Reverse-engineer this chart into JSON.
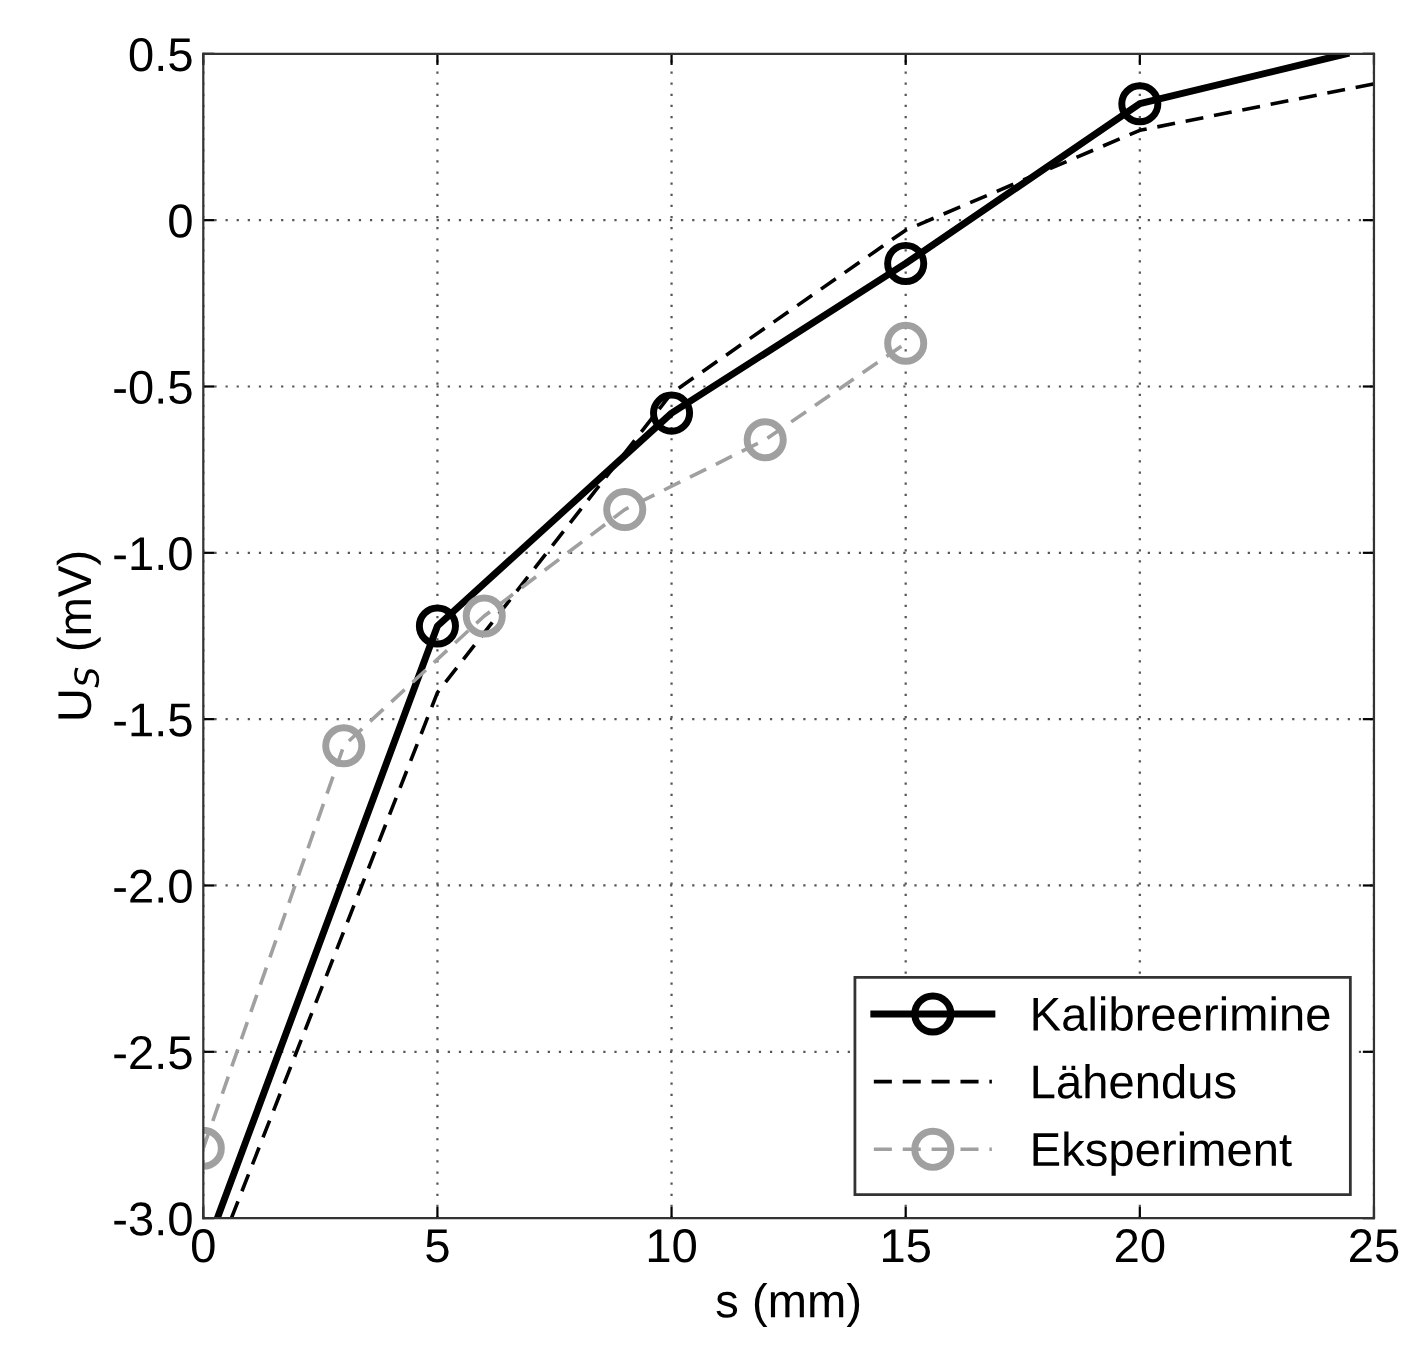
{
  "chart_data": {
    "type": "line",
    "xlabel": "s (mm)",
    "ylabel": "U$_{S}$ (mV)",
    "xlim": [
      0,
      25
    ],
    "xticks": [
      0,
      5,
      10,
      15,
      20,
      25
    ],
    "ylim": [
      -3.0,
      0.5
    ],
    "yticks": [
      0.5,
      0,
      -0.5,
      {
        "value": -1,
        "label": "-1.0"
      },
      -1.5,
      {
        "value": -2,
        "label": "-2.0"
      },
      -2.5,
      {
        "value": -3,
        "label": "-3.0"
      }
    ],
    "grid": true,
    "legend": "bottom right",
    "series": [
      {
        "name": "Kalibreerimine",
        "color": "#000000",
        "marker": "circle",
        "line_style": "solid",
        "x": [
          0.3,
          5,
          10,
          15,
          20,
          24.4
        ],
        "values": [
          -3.0,
          -1.22,
          -0.58,
          -0.13,
          0.35,
          0.5
        ]
      },
      {
        "name": "Lähendus",
        "color": "#000000",
        "marker": "none",
        "line_style": "dashed",
        "x": [
          0.6,
          5,
          10,
          15,
          20,
          25
        ],
        "values": [
          -3.0,
          -1.42,
          -0.52,
          -0.03,
          0.27,
          0.41
        ]
      },
      {
        "name": "Eksperiment",
        "color": "#a0a0a0",
        "marker": "circle",
        "line_style": "dashed",
        "x": [
          0,
          3,
          6,
          9,
          12,
          15
        ],
        "values": [
          -2.79,
          -1.58,
          -1.19,
          -0.87,
          -0.66,
          -0.37
        ]
      }
    ]
  }
}
